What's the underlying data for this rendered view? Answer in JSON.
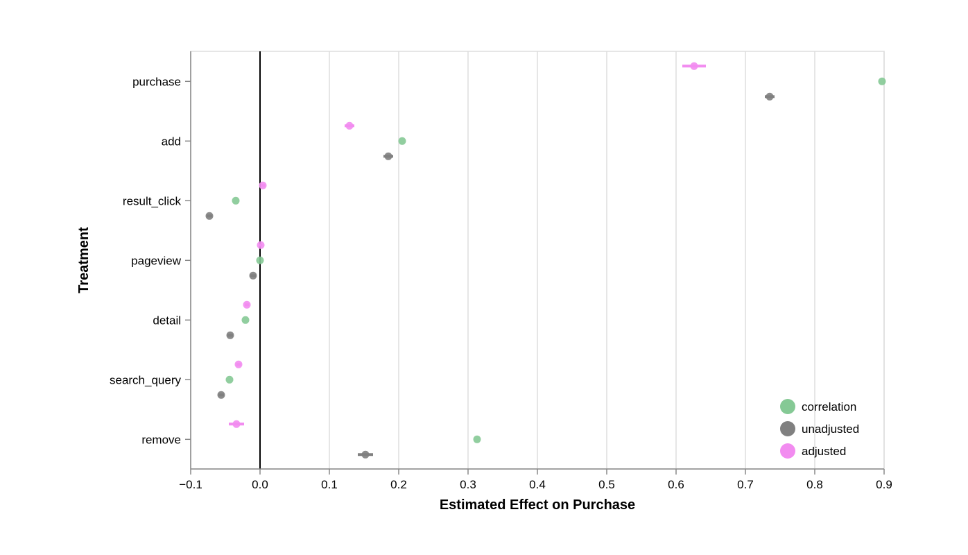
{
  "chart_data": {
    "type": "scatter",
    "xlabel": "Estimated Effect on Purchase",
    "ylabel": "Treatment",
    "xlim": [
      -0.1,
      0.9
    ],
    "x_ticks": [
      "−0.1",
      "0.0",
      "0.1",
      "0.2",
      "0.3",
      "0.4",
      "0.5",
      "0.6",
      "0.7",
      "0.8",
      "0.9"
    ],
    "x_tick_values": [
      -0.1,
      0.0,
      0.1,
      0.2,
      0.3,
      0.4,
      0.5,
      0.6,
      0.7,
      0.8,
      0.9
    ],
    "categories": [
      "purchase",
      "add",
      "result_click",
      "pageview",
      "detail",
      "search_query",
      "remove"
    ],
    "grid": true,
    "reference_line_x": 0.0,
    "legend_position": "bottom-right",
    "series": [
      {
        "name": "adjusted",
        "color": "#f28cf0",
        "values": [
          0.626,
          0.129,
          0.004,
          0.001,
          -0.019,
          -0.031,
          -0.034
        ],
        "ci": [
          [
            0.609,
            0.643
          ],
          [
            0.122,
            0.136
          ],
          [
            0.001,
            0.007
          ],
          [
            -0.001,
            0.003
          ],
          [
            -0.022,
            -0.016
          ],
          [
            -0.034,
            -0.028
          ],
          [
            -0.045,
            -0.023
          ]
        ]
      },
      {
        "name": "correlation",
        "color": "#85c995",
        "values": [
          0.897,
          0.205,
          -0.035,
          0.0,
          -0.021,
          -0.044,
          0.313
        ],
        "ci": null
      },
      {
        "name": "unadjusted",
        "color": "#808080",
        "values": [
          0.735,
          0.185,
          -0.073,
          -0.01,
          -0.043,
          -0.056,
          0.152
        ],
        "ci": [
          [
            0.728,
            0.742
          ],
          [
            0.178,
            0.192
          ],
          [
            -0.077,
            -0.069
          ],
          [
            -0.014,
            -0.006
          ],
          [
            -0.047,
            -0.039
          ],
          [
            -0.06,
            -0.052
          ],
          [
            0.141,
            0.163
          ]
        ]
      }
    ],
    "legend": [
      "correlation",
      "unadjusted",
      "adjusted"
    ]
  }
}
